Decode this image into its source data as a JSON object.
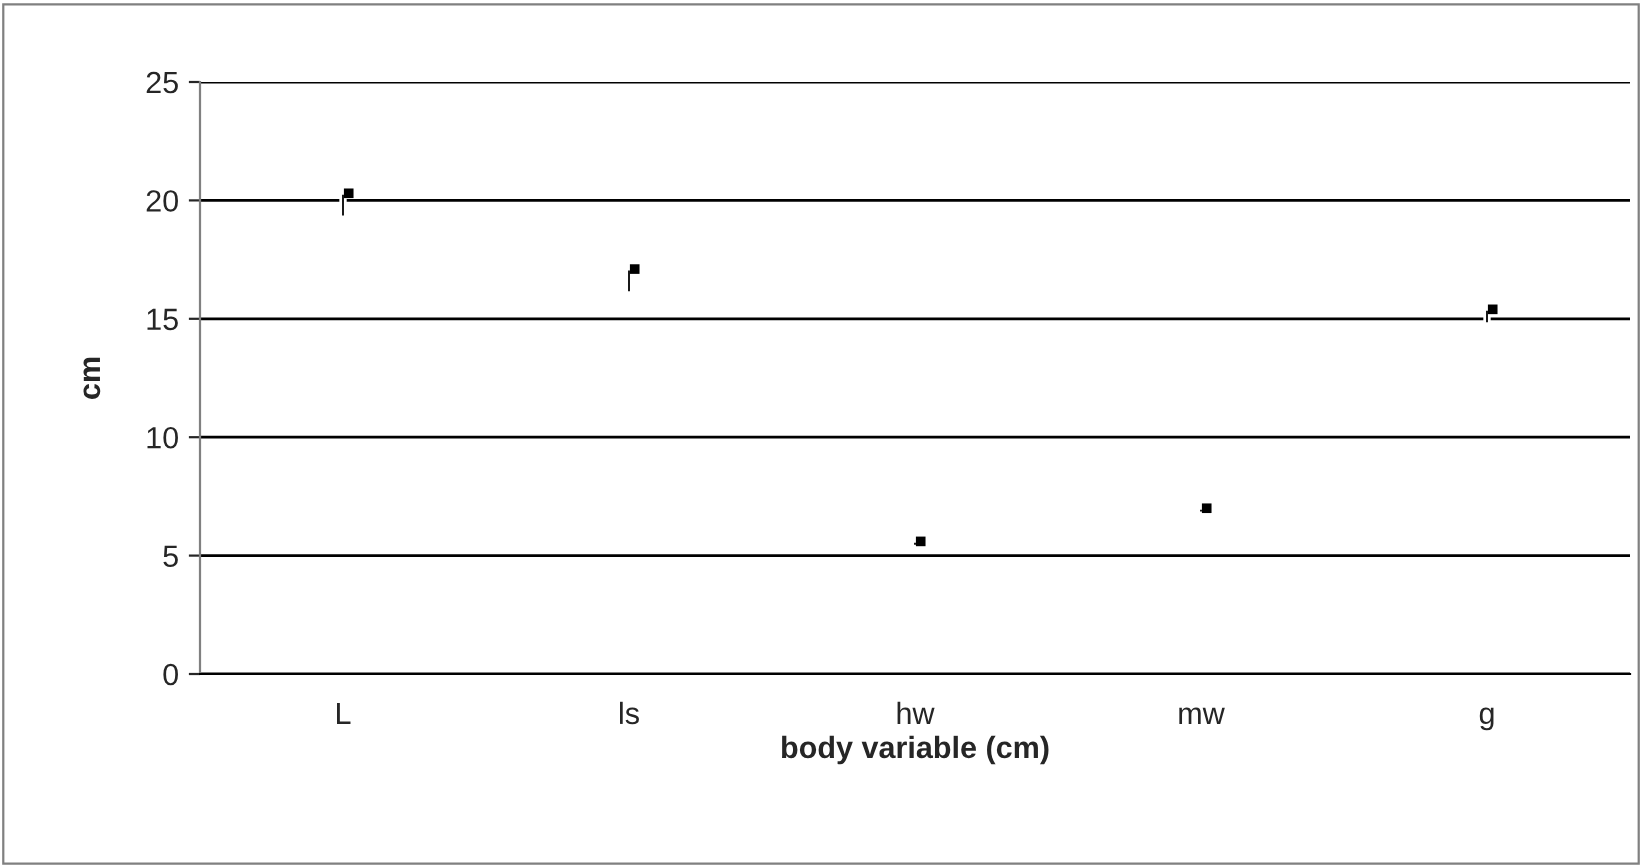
{
  "chart_data": {
    "type": "bar",
    "xlabel": "body variable (cm)",
    "ylabel": "cm",
    "categories": [
      "L",
      "ls",
      "hw",
      "mw",
      "g"
    ],
    "series": [
      {
        "color": "#000000",
        "base": [
          19.3,
          16.1,
          5.4,
          6.8,
          14.8
        ],
        "values": [
          1.0,
          1.0,
          0.2,
          0.2,
          0.6
        ]
      },
      {
        "type": "scatter",
        "color": "#000000",
        "x": [
          "L",
          "ls",
          "hw",
          "mw",
          "g"
        ],
        "values": [
          20.3,
          17.1,
          5.6,
          7.0,
          15.4
        ]
      }
    ],
    "ylim": [
      0,
      25
    ],
    "yticks": [
      0,
      5,
      10,
      15,
      20,
      25
    ],
    "grid": "y",
    "marker": "square"
  }
}
